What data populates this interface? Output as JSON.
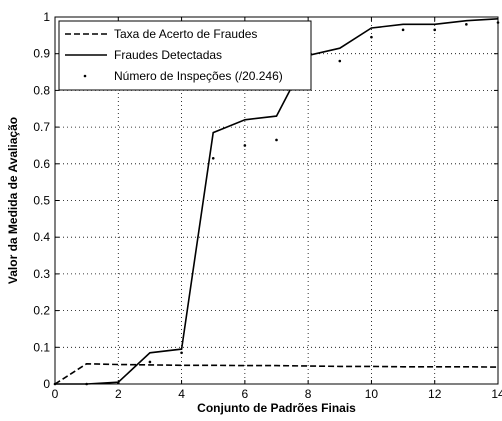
{
  "chart_data": {
    "type": "line",
    "xlabel": "Conjunto de Padrões Finais",
    "ylabel": "Valor da Medida de Avaliação",
    "xlim": [
      0,
      14
    ],
    "ylim": [
      0,
      1
    ],
    "x_ticks": [
      0,
      2,
      4,
      6,
      8,
      10,
      12,
      14
    ],
    "y_ticks": [
      0,
      0.1,
      0.2,
      0.3,
      0.4,
      0.5,
      0.6,
      0.7,
      0.8,
      0.9,
      1
    ],
    "x_tick_labels": [
      "0",
      "2",
      "4",
      "6",
      "8",
      "10",
      "12",
      "14"
    ],
    "y_tick_labels": [
      "0",
      "0.1",
      "0.2",
      "0.3",
      "0.4",
      "0.5",
      "0.6",
      "0.7",
      "0.8",
      "0.9",
      "1"
    ],
    "grid": true,
    "legend_position": "top-left",
    "series": [
      {
        "name": "Taxa de Acerto de Fraudes",
        "style": "dashed",
        "color": "#000000",
        "x": [
          0,
          1,
          2,
          3,
          4,
          5,
          6,
          7,
          8,
          9,
          10,
          11,
          12,
          13,
          14
        ],
        "y": [
          0.0,
          0.055,
          0.053,
          0.052,
          0.051,
          0.051,
          0.05,
          0.05,
          0.049,
          0.048,
          0.048,
          0.047,
          0.047,
          0.047,
          0.046
        ]
      },
      {
        "name": "Fraudes Detectadas",
        "style": "solid",
        "color": "#000000",
        "x": [
          0,
          1,
          2,
          3,
          4,
          5,
          6,
          7,
          8,
          9,
          10,
          11,
          12,
          13,
          14
        ],
        "y": [
          0.0,
          0.0,
          0.005,
          0.085,
          0.095,
          0.685,
          0.72,
          0.73,
          0.895,
          0.915,
          0.97,
          0.98,
          0.98,
          0.99,
          0.995
        ]
      },
      {
        "name": "Número de Inspeções (/20.246)",
        "style": "dots",
        "color": "#000000",
        "x": [
          0,
          1,
          2,
          3,
          4,
          5,
          6,
          7,
          8,
          9,
          10,
          11,
          12,
          13,
          14
        ],
        "y": [
          0.0,
          0.0,
          0.003,
          0.06,
          0.085,
          0.615,
          0.65,
          0.665,
          0.855,
          0.88,
          0.945,
          0.965,
          0.965,
          0.98,
          0.985
        ]
      }
    ]
  }
}
